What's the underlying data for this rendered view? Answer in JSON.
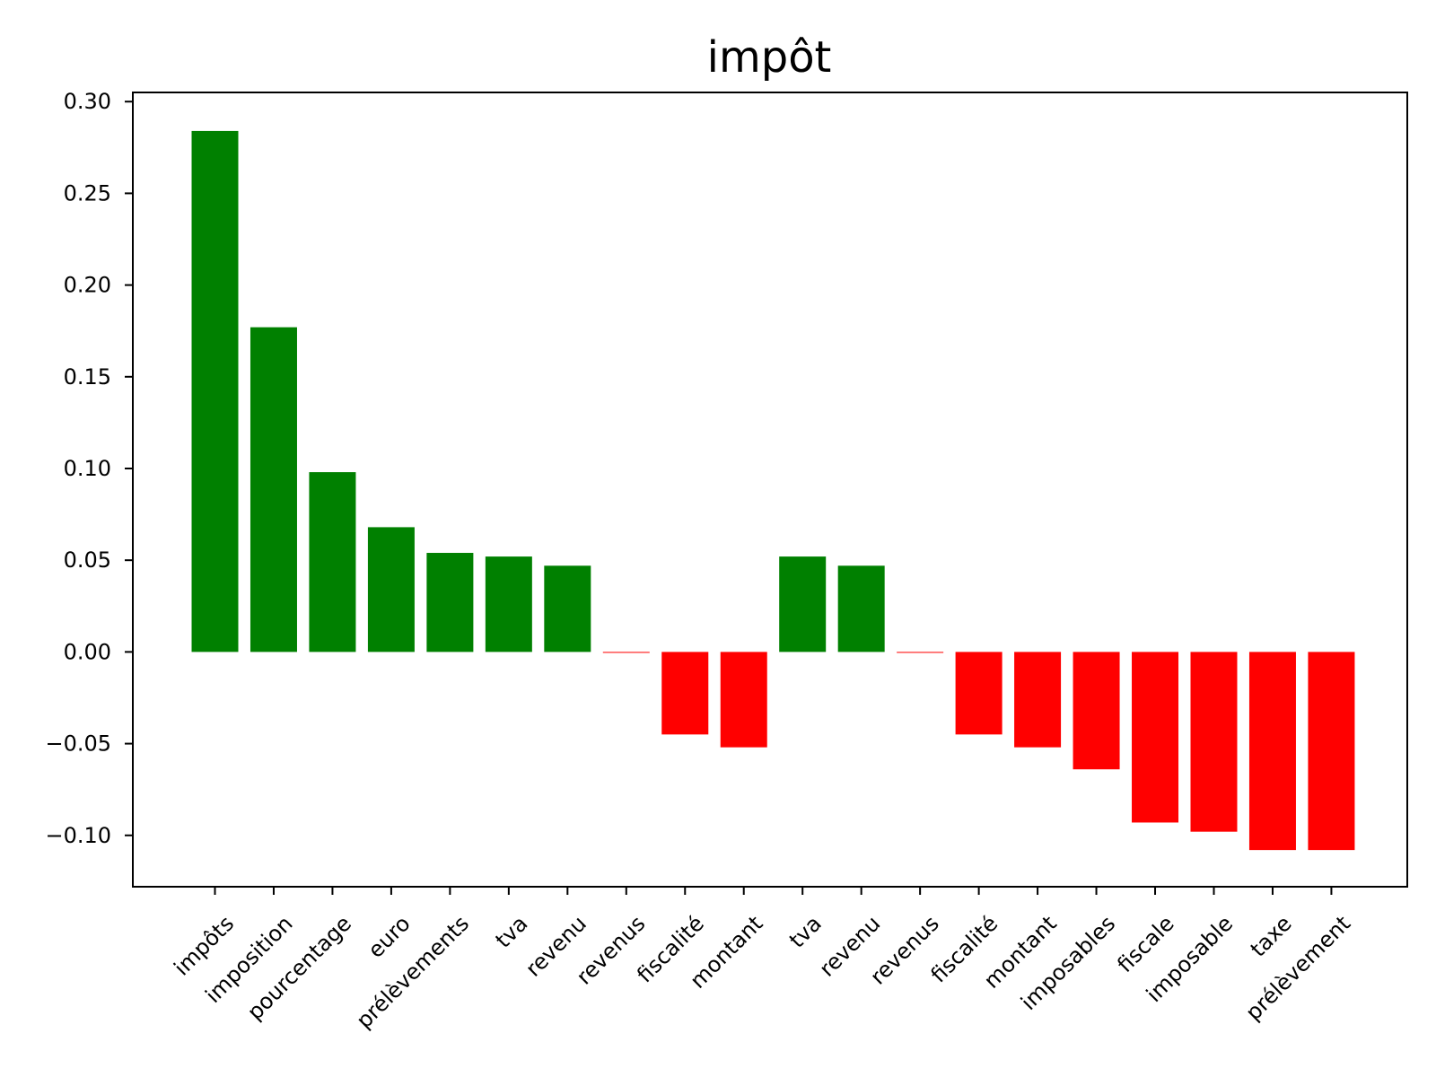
{
  "chart_data": {
    "type": "bar",
    "title": "impôt",
    "xlabel": "",
    "ylabel": "",
    "categories": [
      "impôts",
      "imposition",
      "pourcentage",
      "euro",
      "prélèvements",
      "tva",
      "revenu",
      "revenus",
      "fiscalité",
      "montant",
      "tva",
      "revenu",
      "revenus",
      "fiscalité",
      "montant",
      "imposables",
      "fiscale",
      "imposable",
      "taxe",
      "prélèvement"
    ],
    "values": [
      0.284,
      0.177,
      0.098,
      0.068,
      0.054,
      0.052,
      0.047,
      -0.0005,
      -0.045,
      -0.052,
      0.052,
      0.047,
      -0.0005,
      -0.045,
      -0.052,
      -0.064,
      -0.093,
      -0.098,
      -0.108,
      -0.108
    ],
    "positive_color": "#008000",
    "negative_color": "#ff0000",
    "ylim": [
      -0.128,
      0.305
    ],
    "yticks": [
      -0.1,
      -0.05,
      0.0,
      0.05,
      0.1,
      0.15,
      0.2,
      0.25,
      0.3
    ],
    "ytick_labels": [
      "−0.10",
      "−0.05",
      "0.00",
      "0.05",
      "0.10",
      "0.15",
      "0.20",
      "0.25",
      "0.30"
    ],
    "grid": false,
    "legend": "none"
  }
}
